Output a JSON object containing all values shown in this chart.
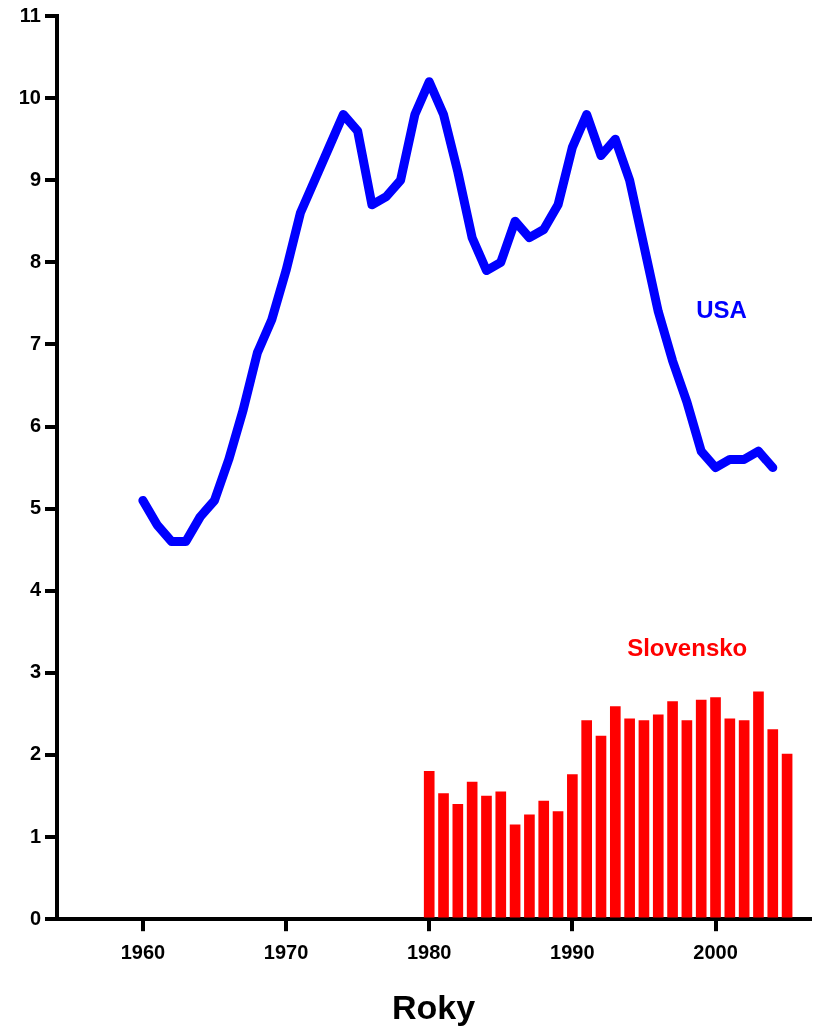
{
  "chart_data": {
    "type": "line",
    "xlabel": "Roky",
    "xlim": [
      1954,
      2006.6
    ],
    "xticks": [
      1960,
      1970,
      1980,
      1990,
      2000
    ],
    "ylim": [
      0,
      11
    ],
    "yticks": [
      0,
      1,
      2,
      3,
      4,
      5,
      6,
      7,
      8,
      9,
      10,
      11
    ],
    "grid": false,
    "legend": false,
    "marker": "none",
    "series": [
      {
        "name": "USA",
        "color": "#0000ff",
        "x": [
          1960,
          1961,
          1962,
          1963,
          1964,
          1965,
          1966,
          1967,
          1968,
          1969,
          1970,
          1971,
          1972,
          1973,
          1974,
          1975,
          1976,
          1977,
          1978,
          1979,
          1980,
          1981,
          1982,
          1983,
          1984,
          1985,
          1986,
          1987,
          1988,
          1989,
          1990,
          1991,
          1992,
          1993,
          1994,
          1995,
          1996,
          1997,
          1998,
          1999,
          2000,
          2001,
          2002,
          2003,
          2004
        ],
        "values": [
          5.1,
          4.8,
          4.6,
          4.6,
          4.9,
          5.1,
          5.6,
          6.2,
          6.9,
          7.3,
          7.9,
          8.6,
          9.0,
          9.4,
          9.8,
          9.6,
          8.7,
          8.8,
          9.0,
          9.8,
          10.2,
          9.8,
          9.1,
          8.3,
          7.9,
          8.0,
          8.5,
          8.3,
          8.4,
          8.7,
          9.4,
          9.8,
          9.3,
          9.5,
          9.0,
          8.2,
          7.4,
          6.8,
          6.3,
          5.7,
          5.5,
          5.6,
          5.6,
          5.7,
          5.5
        ]
      },
      {
        "name": "Slovensko",
        "type": "bar",
        "color": "#ff0000",
        "x": [
          1980,
          1981,
          1982,
          1983,
          1984,
          1985,
          1986,
          1987,
          1988,
          1989,
          1990,
          1991,
          1992,
          1993,
          1994,
          1995,
          1996,
          1997,
          1998,
          1999,
          2000,
          2001,
          2002,
          2003,
          2004,
          2005
        ],
        "values": [
          1.8,
          1.53,
          1.4,
          1.67,
          1.5,
          1.55,
          1.15,
          1.27,
          1.44,
          1.31,
          1.76,
          2.42,
          2.23,
          2.59,
          2.44,
          2.42,
          2.49,
          2.65,
          2.42,
          2.67,
          2.7,
          2.44,
          2.42,
          2.77,
          2.31,
          2.01
        ]
      }
    ]
  }
}
